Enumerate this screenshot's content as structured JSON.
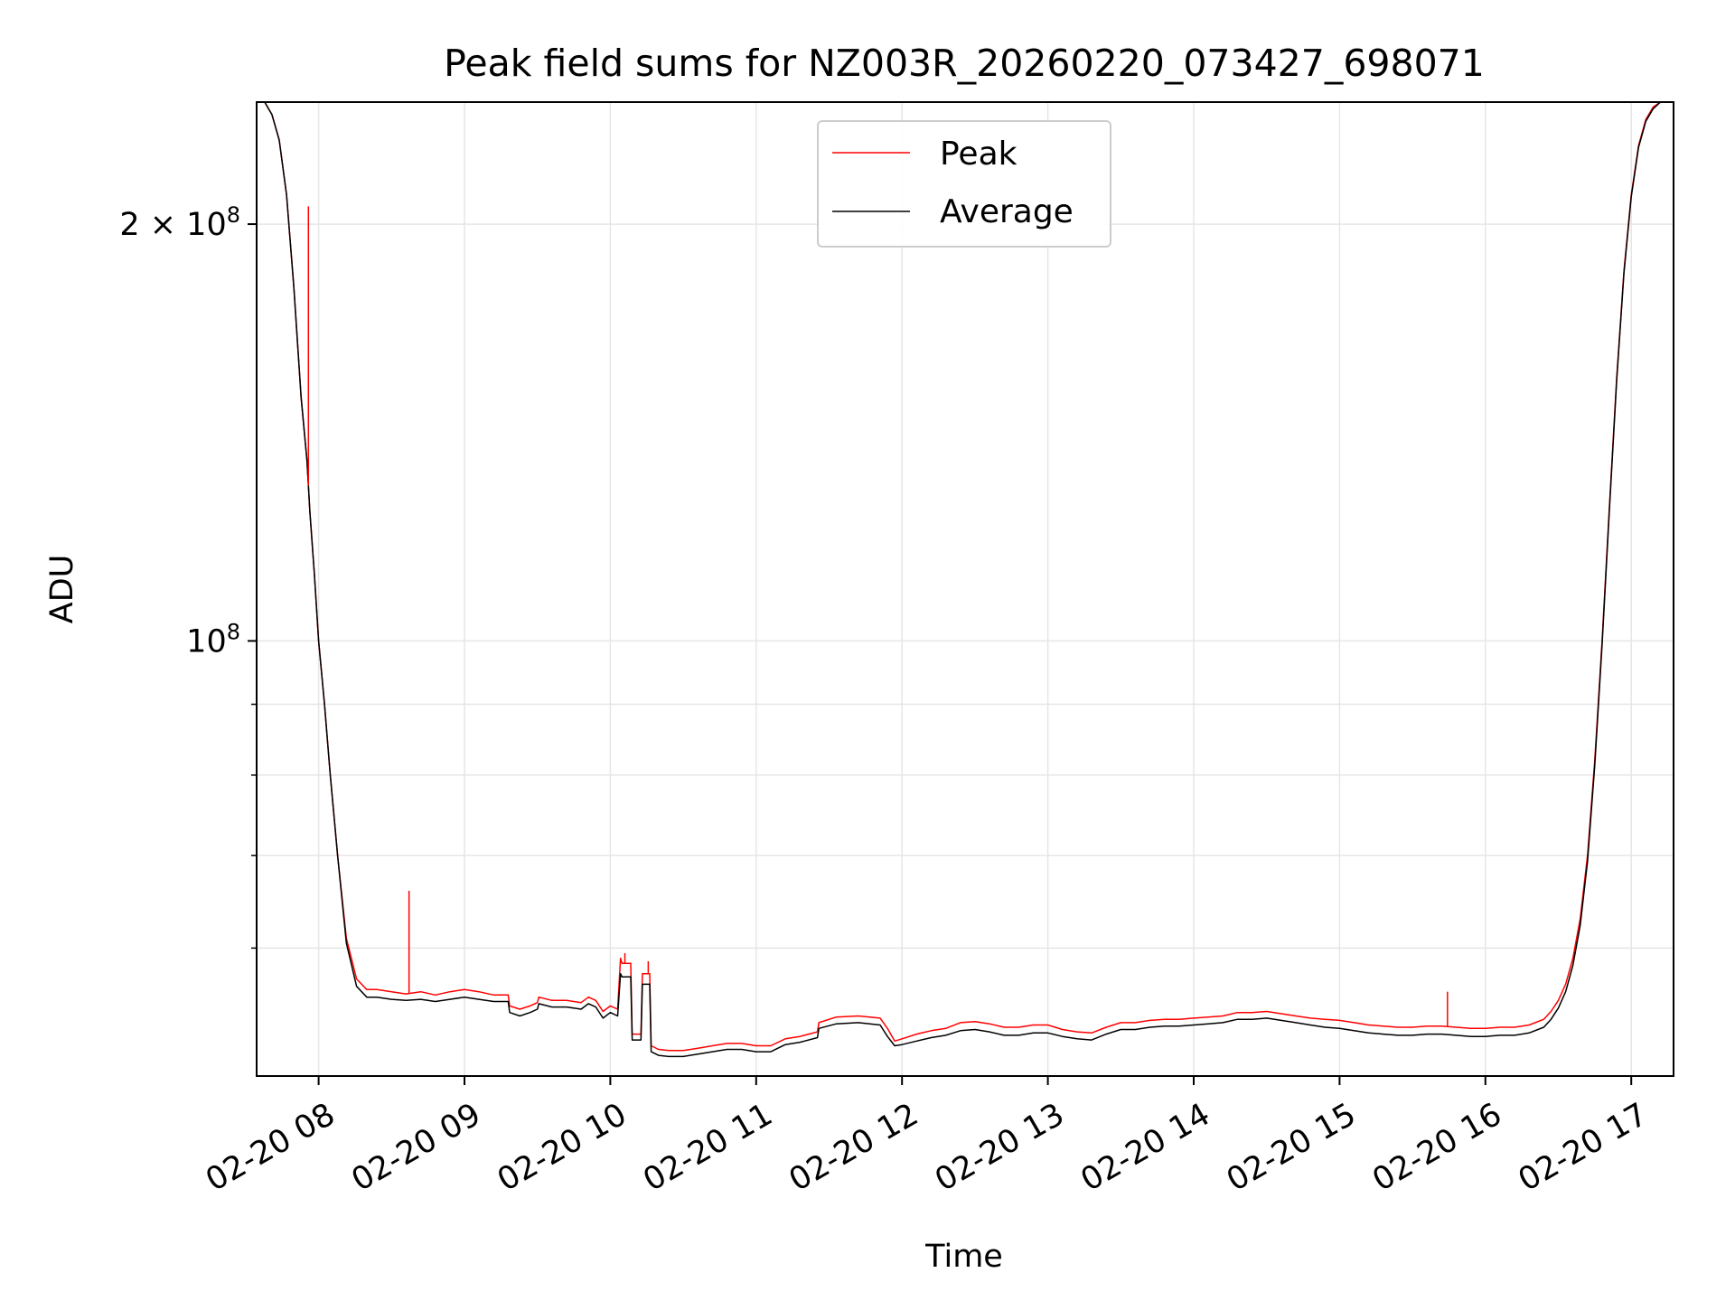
{
  "chart_data": {
    "type": "line",
    "title": "Peak field sums for NZ003R_20260220_073427_698071",
    "xlabel": "Time",
    "ylabel": "ADU",
    "yscale": "log",
    "grid": true,
    "legend_position": "upper center",
    "xlim": [
      7.575,
      17.29
    ],
    "ylim": [
      48500000,
      245000000
    ],
    "x_ticks": [
      {
        "value": 8,
        "label": "02-20 08"
      },
      {
        "value": 9,
        "label": "02-20 09"
      },
      {
        "value": 10,
        "label": "02-20 10"
      },
      {
        "value": 11,
        "label": "02-20 11"
      },
      {
        "value": 12,
        "label": "02-20 12"
      },
      {
        "value": 13,
        "label": "02-20 13"
      },
      {
        "value": 14,
        "label": "02-20 14"
      },
      {
        "value": 15,
        "label": "02-20 15"
      },
      {
        "value": 16,
        "label": "02-20 16"
      },
      {
        "value": 17,
        "label": "02-20 17"
      }
    ],
    "y_ticks_major": [
      {
        "value": 100000000,
        "base": "10",
        "exp": "8",
        "mant": ""
      },
      {
        "value": 200000000,
        "base": "10",
        "exp": "8",
        "mant": "2 × "
      }
    ],
    "y_ticks_minor": [
      60000000,
      70000000,
      80000000,
      90000000
    ],
    "series": [
      {
        "name": "Peak",
        "color": "#ff0000",
        "x": [
          7.575,
          7.63,
          7.68,
          7.73,
          7.78,
          7.83,
          7.88,
          7.92,
          7.94,
          7.97,
          8.0,
          8.04,
          8.08,
          8.13,
          8.19,
          8.26,
          8.33,
          8.4,
          8.5,
          8.6,
          8.7,
          8.8,
          8.9,
          9.0,
          9.1,
          9.2,
          9.3,
          9.31,
          9.38,
          9.45,
          9.5,
          9.51,
          9.6,
          9.7,
          9.8,
          9.85,
          9.9,
          9.95,
          10.0,
          10.05,
          10.07,
          10.08,
          10.14,
          10.15,
          10.21,
          10.22,
          10.27,
          10.28,
          10.33,
          10.4,
          10.5,
          10.6,
          10.7,
          10.8,
          10.9,
          11.0,
          11.1,
          11.2,
          11.3,
          11.42,
          11.43,
          11.55,
          11.7,
          11.85,
          11.9,
          11.95,
          12.0,
          12.1,
          12.2,
          12.3,
          12.4,
          12.5,
          12.6,
          12.7,
          12.8,
          12.9,
          13.0,
          13.1,
          13.2,
          13.3,
          13.4,
          13.5,
          13.6,
          13.7,
          13.8,
          13.9,
          14.0,
          14.1,
          14.2,
          14.3,
          14.4,
          14.5,
          14.6,
          14.7,
          14.8,
          14.9,
          15.0,
          15.1,
          15.2,
          15.3,
          15.4,
          15.5,
          15.6,
          15.7,
          15.8,
          15.9,
          16.0,
          16.1,
          16.2,
          16.3,
          16.4,
          16.45,
          16.5,
          16.55,
          16.6,
          16.65,
          16.7,
          16.75,
          16.8,
          16.85,
          16.9,
          16.95,
          17.0,
          17.05,
          17.1,
          17.15,
          17.2,
          17.29
        ],
        "y": [
          245000000,
          245000000,
          240000000,
          230000000,
          210000000,
          180000000,
          150000000,
          135000000,
          124000000,
          112000000,
          100000000,
          90000000,
          80000000,
          70000000,
          61000000,
          57000000,
          56000000,
          56000000,
          55800000,
          55600000,
          55800000,
          55500000,
          55800000,
          56000000,
          55800000,
          55500000,
          55500000,
          54500000,
          54200000,
          54500000,
          54800000,
          55300000,
          55000000,
          55000000,
          54800000,
          55300000,
          55000000,
          54000000,
          54500000,
          54200000,
          59000000,
          58500000,
          58500000,
          52000000,
          52000000,
          57500000,
          57500000,
          51000000,
          50700000,
          50600000,
          50600000,
          50800000,
          51000000,
          51200000,
          51200000,
          51000000,
          51000000,
          51600000,
          51800000,
          52200000,
          53000000,
          53500000,
          53600000,
          53400000,
          52500000,
          51400000,
          51600000,
          52000000,
          52300000,
          52500000,
          53000000,
          53100000,
          52900000,
          52600000,
          52600000,
          52800000,
          52800000,
          52400000,
          52200000,
          52100000,
          52600000,
          53000000,
          53000000,
          53200000,
          53300000,
          53300000,
          53400000,
          53500000,
          53600000,
          53900000,
          53900000,
          54000000,
          53800000,
          53600000,
          53400000,
          53300000,
          53200000,
          53000000,
          52800000,
          52700000,
          52600000,
          52600000,
          52700000,
          52700000,
          52600000,
          52500000,
          52500000,
          52600000,
          52600000,
          52800000,
          53300000,
          54000000,
          55000000,
          56500000,
          59000000,
          63000000,
          70000000,
          82000000,
          100000000,
          125000000,
          155000000,
          185000000,
          210000000,
          228000000,
          238000000,
          243000000,
          245000000,
          245000000
        ]
      },
      {
        "name": "Average",
        "color": "#000000",
        "x": [
          7.575,
          7.63,
          7.68,
          7.73,
          7.78,
          7.83,
          7.88,
          7.92,
          7.94,
          7.97,
          8.0,
          8.04,
          8.08,
          8.13,
          8.19,
          8.26,
          8.33,
          8.4,
          8.5,
          8.6,
          8.7,
          8.8,
          8.9,
          9.0,
          9.1,
          9.2,
          9.3,
          9.31,
          9.38,
          9.45,
          9.5,
          9.51,
          9.6,
          9.7,
          9.8,
          9.85,
          9.9,
          9.95,
          10.0,
          10.05,
          10.07,
          10.08,
          10.14,
          10.15,
          10.21,
          10.22,
          10.27,
          10.28,
          10.33,
          10.4,
          10.5,
          10.6,
          10.7,
          10.8,
          10.9,
          11.0,
          11.1,
          11.2,
          11.3,
          11.42,
          11.43,
          11.55,
          11.7,
          11.85,
          11.9,
          11.95,
          12.0,
          12.1,
          12.2,
          12.3,
          12.4,
          12.5,
          12.6,
          12.7,
          12.8,
          12.9,
          13.0,
          13.1,
          13.2,
          13.3,
          13.4,
          13.5,
          13.6,
          13.7,
          13.8,
          13.9,
          14.0,
          14.1,
          14.2,
          14.3,
          14.4,
          14.5,
          14.6,
          14.7,
          14.8,
          14.9,
          15.0,
          15.1,
          15.2,
          15.3,
          15.4,
          15.5,
          15.6,
          15.7,
          15.8,
          15.9,
          16.0,
          16.1,
          16.2,
          16.3,
          16.4,
          16.45,
          16.5,
          16.55,
          16.6,
          16.65,
          16.7,
          16.75,
          16.8,
          16.85,
          16.9,
          16.95,
          17.0,
          17.05,
          17.1,
          17.15,
          17.2,
          17.29
        ],
        "y": [
          245000000,
          245000000,
          240000000,
          230000000,
          210000000,
          180000000,
          150000000,
          135000000,
          124000000,
          112000000,
          100000000,
          90000000,
          80000000,
          70000000,
          60500000,
          56300000,
          55300000,
          55300000,
          55100000,
          55000000,
          55100000,
          54900000,
          55100000,
          55300000,
          55100000,
          54900000,
          54900000,
          53900000,
          53600000,
          53900000,
          54200000,
          54700000,
          54400000,
          54400000,
          54200000,
          54700000,
          54400000,
          53400000,
          53900000,
          53600000,
          57500000,
          57200000,
          57200000,
          51500000,
          51500000,
          56500000,
          56500000,
          50500000,
          50200000,
          50100000,
          50100000,
          50300000,
          50500000,
          50700000,
          50700000,
          50500000,
          50500000,
          51100000,
          51300000,
          51700000,
          52500000,
          52900000,
          53000000,
          52800000,
          51800000,
          51000000,
          51100000,
          51400000,
          51700000,
          51900000,
          52300000,
          52400000,
          52200000,
          51900000,
          51900000,
          52100000,
          52100000,
          51800000,
          51600000,
          51500000,
          52000000,
          52400000,
          52400000,
          52600000,
          52700000,
          52700000,
          52800000,
          52900000,
          53000000,
          53300000,
          53300000,
          53400000,
          53200000,
          53000000,
          52800000,
          52600000,
          52500000,
          52300000,
          52100000,
          52000000,
          51900000,
          51900000,
          52000000,
          52000000,
          51900000,
          51800000,
          51800000,
          51900000,
          51900000,
          52100000,
          52600000,
          53300000,
          54300000,
          55800000,
          58300000,
          62300000,
          69300000,
          81300000,
          99300000,
          124300000,
          154300000,
          184300000,
          209300000,
          227300000,
          237300000,
          242300000,
          245000000,
          245000000
        ]
      }
    ],
    "spikes": [
      {
        "series": "Peak",
        "x": 7.93,
        "y": 206000000
      },
      {
        "series": "Peak",
        "x": 8.62,
        "y": 66000000
      },
      {
        "series": "Peak",
        "x": 10.1,
        "y": 59500000
      },
      {
        "series": "Peak",
        "x": 10.26,
        "y": 58700000
      },
      {
        "series": "Peak",
        "x": 15.74,
        "y": 55800000
      }
    ]
  }
}
